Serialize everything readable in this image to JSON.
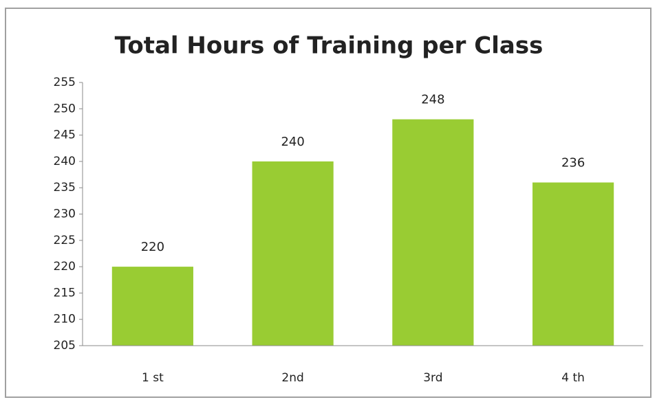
{
  "chart_data": {
    "type": "bar",
    "title": "Total Hours of Training per Class",
    "categories": [
      "1 st",
      "2nd",
      "3rd",
      "4 th"
    ],
    "values": [
      220,
      240,
      248,
      236
    ],
    "color": "#99cc33",
    "ylim": [
      205,
      255
    ],
    "yticks": [
      205,
      210,
      215,
      220,
      225,
      230,
      235,
      240,
      245,
      250,
      255
    ],
    "grid": false
  }
}
